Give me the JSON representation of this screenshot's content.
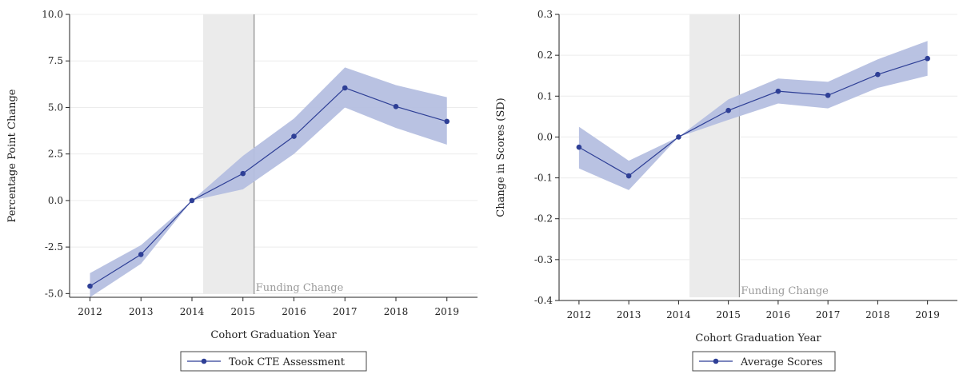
{
  "chart_data": [
    {
      "type": "line",
      "xlabel": "Cohort Graduation Year",
      "ylabel": "Percentage Point Change",
      "x": [
        2012,
        2013,
        2014,
        2015,
        2016,
        2017,
        2018,
        2019
      ],
      "xlim": [
        2011.6,
        2019.6
      ],
      "ylim": [
        -5.2,
        10.0
      ],
      "yticks": [
        -5.0,
        -2.5,
        0.0,
        2.5,
        5.0,
        7.5,
        10.0
      ],
      "ytick_labels": [
        "-5.0",
        "-2.5",
        "0.0",
        "2.5",
        "5.0",
        "7.5",
        "10.0"
      ],
      "series": [
        {
          "name": "Took CTE Assessment",
          "values": [
            -4.6,
            -2.9,
            0.0,
            1.45,
            3.45,
            6.05,
            5.05,
            4.25
          ],
          "ci_lower": [
            -5.2,
            -3.4,
            0.0,
            0.6,
            2.5,
            5.0,
            3.9,
            3.0
          ],
          "ci_upper": [
            -3.9,
            -2.4,
            0.0,
            2.4,
            4.4,
            7.15,
            6.2,
            5.55
          ]
        }
      ],
      "shaded_region": {
        "x_start": 2014.22,
        "x_end": 2015.22
      },
      "vline": {
        "x": 2015.22,
        "label": "Funding Change"
      },
      "legend_position": "bottom",
      "grid": "horizontal",
      "colors": {
        "line": "#2e3f96",
        "band": "#b5bfe0",
        "shade": "#ebebeb",
        "grid": "#ececec"
      }
    },
    {
      "type": "line",
      "xlabel": "Cohort Graduation Year",
      "ylabel": "Change in Scores (SD)",
      "x": [
        2012,
        2013,
        2014,
        2015,
        2016,
        2017,
        2018,
        2019
      ],
      "xlim": [
        2011.6,
        2019.6
      ],
      "ylim": [
        -0.4,
        0.3
      ],
      "yticks": [
        -0.4,
        -0.3,
        -0.2,
        -0.1,
        0.0,
        0.1,
        0.2,
        0.3
      ],
      "ytick_labels": [
        "-0.4",
        "-0.3",
        "-0.2",
        "-0.1",
        "0.0",
        "0.1",
        "0.2",
        "0.3"
      ],
      "series": [
        {
          "name": "Average Scores",
          "values": [
            -0.025,
            -0.095,
            0.0,
            0.065,
            0.112,
            0.102,
            0.153,
            0.192
          ],
          "ci_lower": [
            -0.077,
            -0.13,
            0.0,
            0.042,
            0.082,
            0.07,
            0.12,
            0.15
          ],
          "ci_upper": [
            0.025,
            -0.058,
            0.0,
            0.092,
            0.143,
            0.135,
            0.19,
            0.235
          ]
        }
      ],
      "shaded_region": {
        "x_start": 2014.22,
        "x_end": 2015.22
      },
      "vline": {
        "x": 2015.22,
        "label": "Funding Change"
      },
      "legend_position": "bottom",
      "grid": "horizontal",
      "colors": {
        "line": "#2e3f96",
        "band": "#b5bfe0",
        "shade": "#ebebeb",
        "grid": "#ececec"
      }
    }
  ]
}
